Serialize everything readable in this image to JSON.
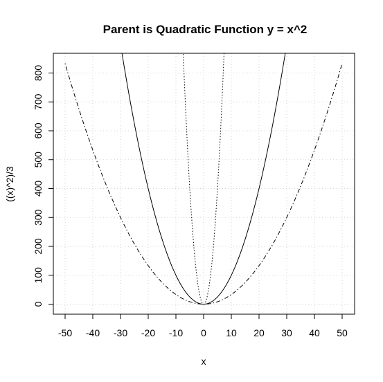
{
  "chart_data": {
    "type": "line",
    "title": "Parent is Quadratic Function y = x^2",
    "xlabel": "x",
    "ylabel": "((x)^2)/3",
    "xlim": [
      -50,
      50
    ],
    "ylim": [
      0,
      850
    ],
    "xticks": [
      -50,
      -40,
      -30,
      -20,
      -10,
      0,
      10,
      20,
      30,
      40,
      50
    ],
    "yticks": [
      0,
      100,
      200,
      300,
      400,
      500,
      600,
      700,
      800
    ],
    "grid": true,
    "series": [
      {
        "formula": "x^2/3",
        "coef": 0.3333,
        "line_style": "dotdash",
        "x": [
          -50,
          -40,
          -30,
          -20,
          -10,
          0,
          10,
          20,
          30,
          40,
          50
        ],
        "y": [
          833.3,
          533.3,
          300,
          133.3,
          33.3,
          0,
          33.3,
          133.3,
          300,
          533.3,
          833.3
        ]
      },
      {
        "formula": "x^2",
        "coef": 1,
        "line_style": "solid",
        "x": [
          -29,
          -20,
          -10,
          0,
          10,
          20,
          29
        ],
        "y": [
          841,
          400,
          100,
          0,
          100,
          400,
          841
        ]
      },
      {
        "formula": "16x^2",
        "coef": 16,
        "line_style": "dotted",
        "x": [
          -7.2,
          -5,
          -2.5,
          0,
          2.5,
          5,
          7.2
        ],
        "y": [
          829.4,
          400,
          100,
          0,
          100,
          400,
          829.4
        ]
      }
    ]
  }
}
